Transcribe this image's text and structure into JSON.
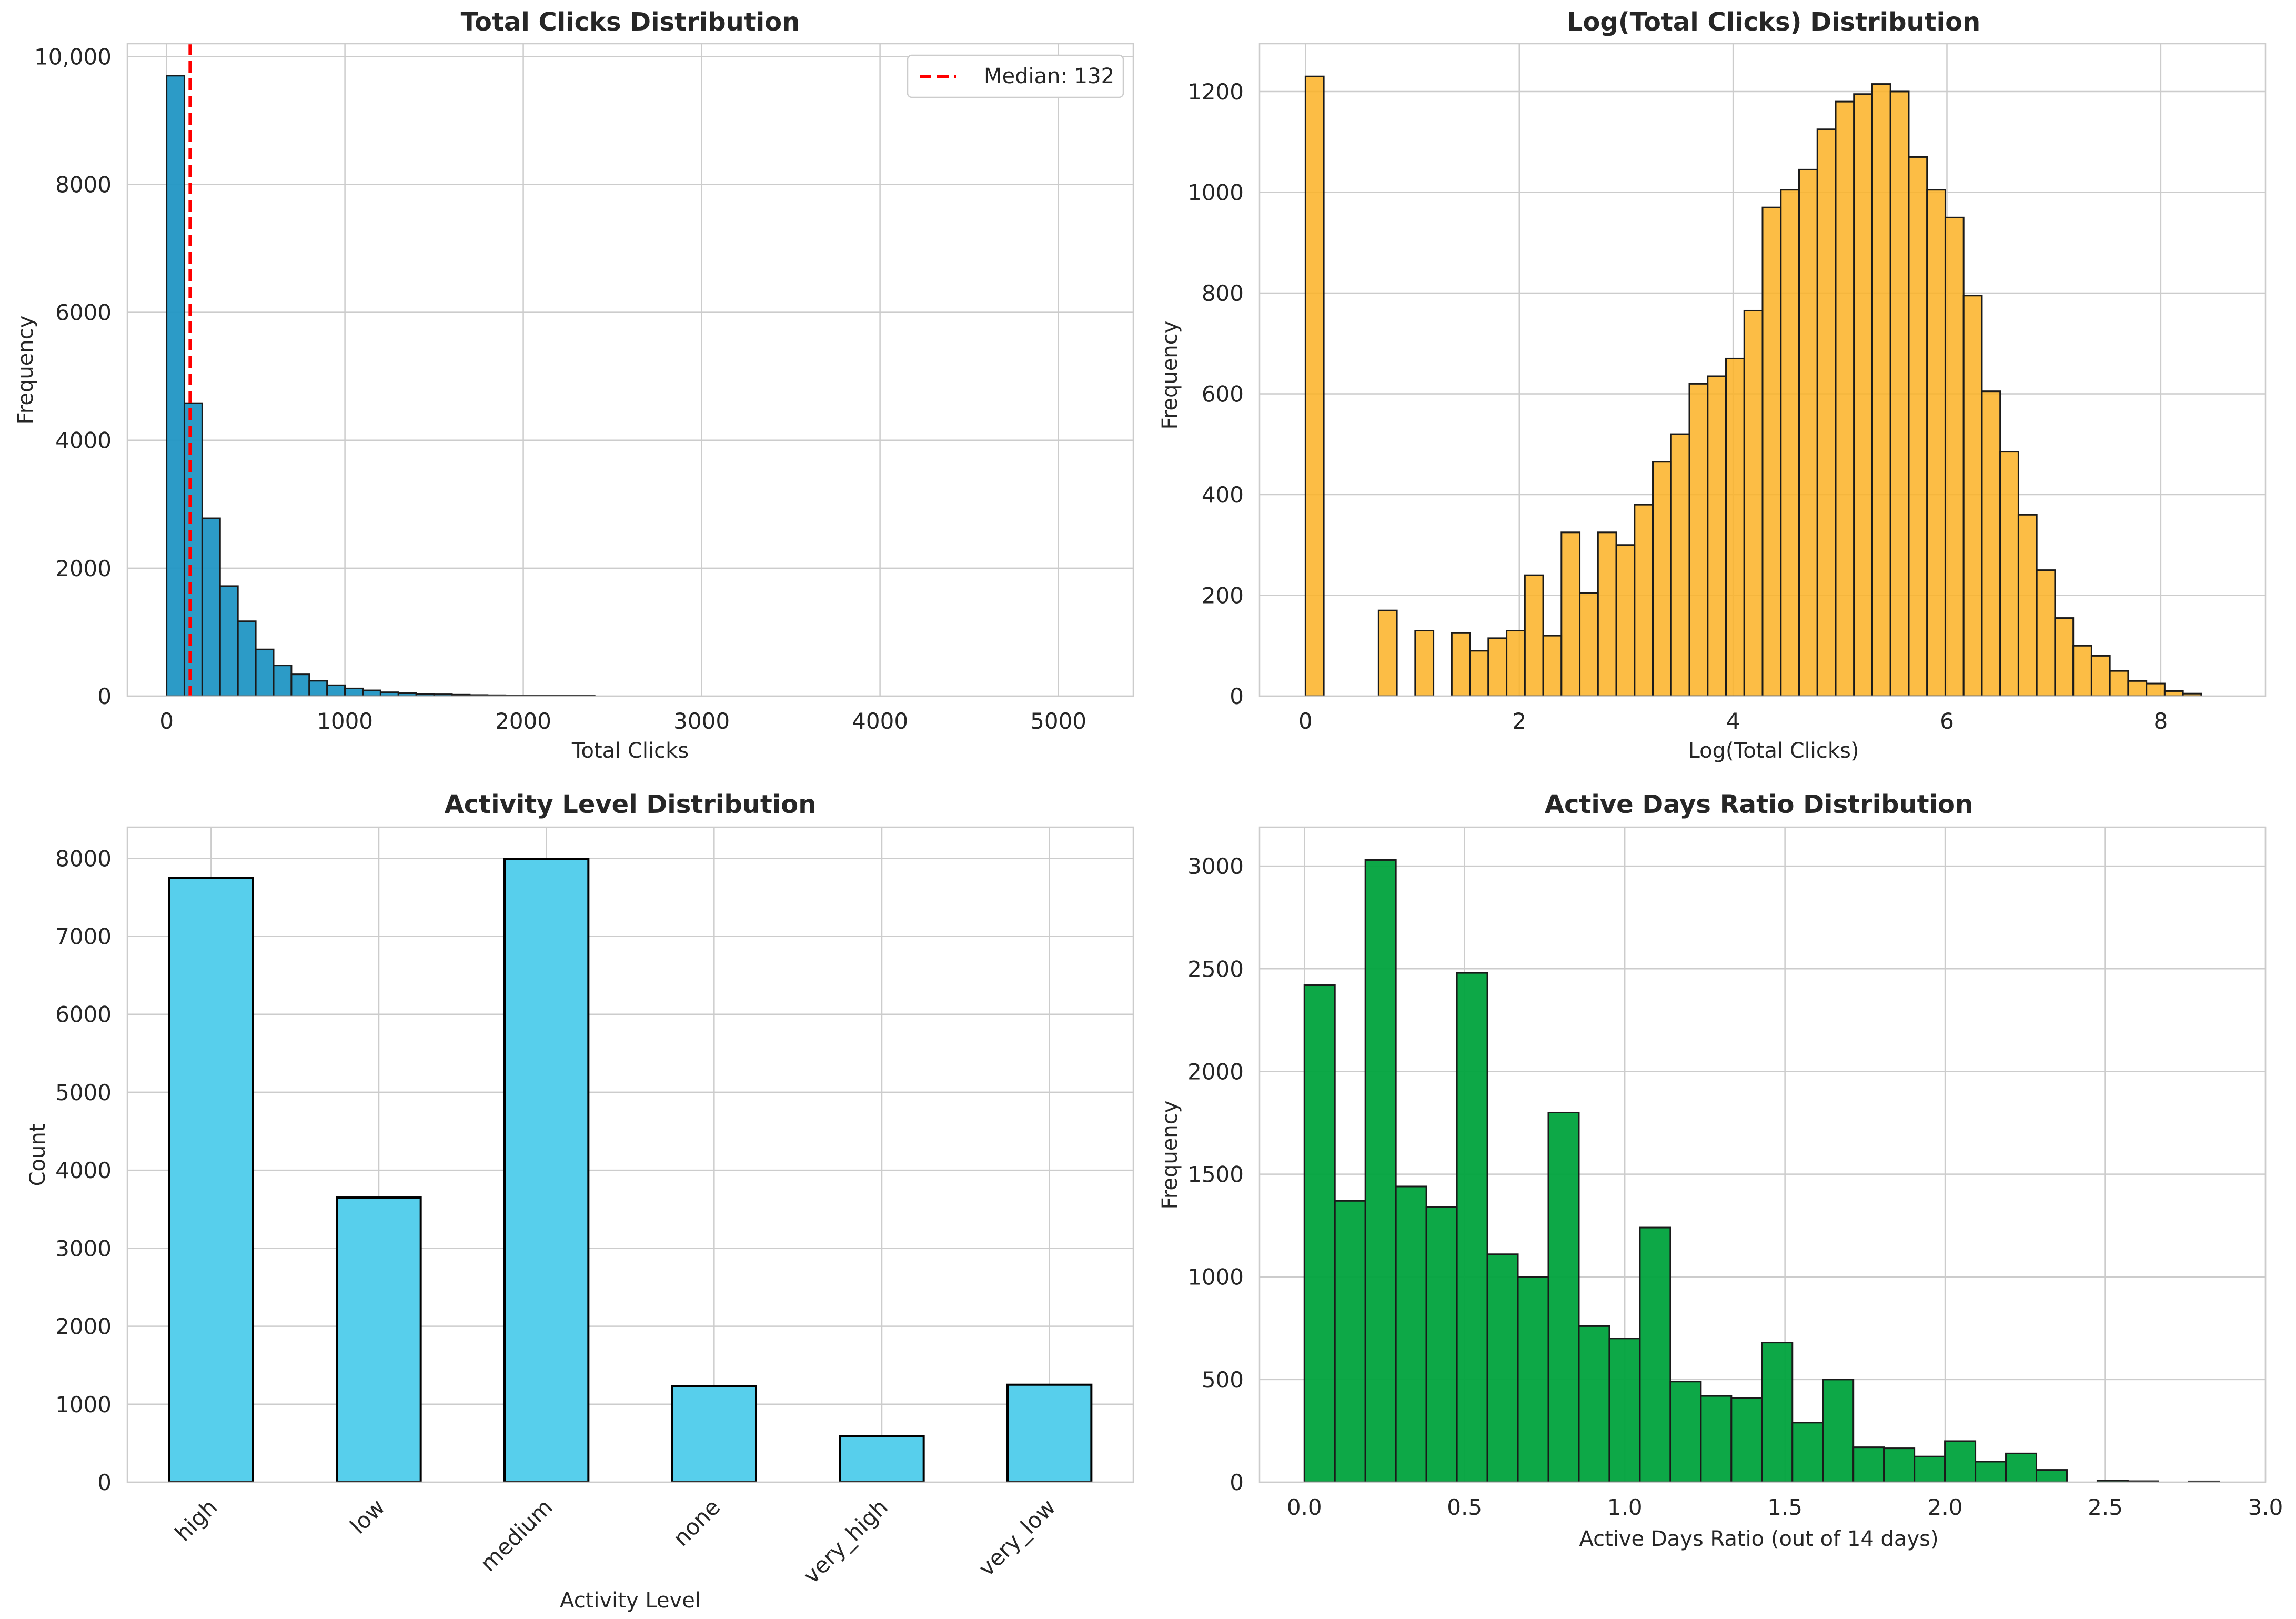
{
  "chart_data": [
    {
      "type": "bar",
      "subtype": "histogram",
      "title": "Total Clicks Distribution",
      "xlabel": "Total Clicks",
      "ylabel": "Frequency",
      "xlim": [
        -220,
        5420
      ],
      "ylim": [
        0,
        10200
      ],
      "xticks": [
        0,
        1000,
        2000,
        3000,
        4000,
        5000
      ],
      "xtick_labels": [
        "0",
        "1000",
        "2000",
        "3000",
        "4000",
        "5000"
      ],
      "yticks": [
        0,
        2000,
        4000,
        6000,
        8000,
        10000
      ],
      "ytick_labels": [
        "0",
        "2000",
        "4000",
        "6000",
        "8000",
        "10,000"
      ],
      "bin_start": 0,
      "bin_width": 100,
      "values": [
        9700,
        4580,
        2780,
        1720,
        1170,
        730,
        480,
        340,
        240,
        170,
        120,
        90,
        60,
        45,
        35,
        28,
        22,
        17,
        14,
        11,
        9,
        7,
        6,
        5
      ],
      "color": "#2196c4",
      "reference_line": {
        "x": 132,
        "color": "#ff0000",
        "label": "Median: 132"
      },
      "legend_position": "top-right",
      "grid": true
    },
    {
      "type": "bar",
      "subtype": "histogram",
      "title": "Log(Total Clicks) Distribution",
      "xlabel": "Log(Total Clicks)",
      "ylabel": "Frequency",
      "xlim": [
        -0.43,
        8.98
      ],
      "ylim": [
        0,
        1295
      ],
      "xticks": [
        0,
        2,
        4,
        6,
        8
      ],
      "xtick_labels": [
        "0",
        "2",
        "4",
        "6",
        "8"
      ],
      "yticks": [
        0,
        200,
        400,
        600,
        800,
        1000,
        1200
      ],
      "ytick_labels": [
        "0",
        "200",
        "400",
        "600",
        "800",
        "1000",
        "1200"
      ],
      "bin_start": 0,
      "bin_width": 0.171,
      "values": [
        1230,
        0,
        0,
        0,
        170,
        0,
        130,
        0,
        125,
        90,
        115,
        130,
        240,
        120,
        325,
        205,
        325,
        300,
        380,
        465,
        520,
        620,
        635,
        670,
        765,
        970,
        1005,
        1045,
        1125,
        1180,
        1195,
        1215,
        1200,
        1070,
        1005,
        950,
        795,
        605,
        485,
        360,
        250,
        155,
        100,
        80,
        50,
        30,
        25,
        10,
        5
      ],
      "color": "#fbb225",
      "grid": true
    },
    {
      "type": "bar",
      "title": "Activity Level Distribution",
      "xlabel": "Activity Level",
      "ylabel": "Count",
      "categories": [
        "high",
        "low",
        "medium",
        "none",
        "very_high",
        "very_low"
      ],
      "values": [
        7750,
        3650,
        7990,
        1230,
        590,
        1250
      ],
      "ylim": [
        0,
        8400
      ],
      "yticks": [
        0,
        1000,
        2000,
        3000,
        4000,
        5000,
        6000,
        7000,
        8000
      ],
      "ytick_labels": [
        "0",
        "1000",
        "2000",
        "3000",
        "4000",
        "5000",
        "6000",
        "7000",
        "8000"
      ],
      "color": "#57cfec",
      "grid": true
    },
    {
      "type": "bar",
      "subtype": "histogram",
      "title": "Active Days Ratio Distribution",
      "xlabel": "Active Days Ratio (out of 14 days)",
      "ylabel": "Frequency",
      "xlim": [
        -0.14,
        3.0
      ],
      "ylim": [
        0,
        3190
      ],
      "xticks": [
        0,
        0.5,
        1.0,
        1.5,
        2.0,
        2.5,
        3.0
      ],
      "xtick_labels": [
        "0.0",
        "0.5",
        "1.0",
        "1.5",
        "2.0",
        "2.5",
        "3.0"
      ],
      "yticks": [
        0,
        500,
        1000,
        1500,
        2000,
        2500,
        3000
      ],
      "ytick_labels": [
        "0",
        "500",
        "1000",
        "1500",
        "2000",
        "2500",
        "3000"
      ],
      "bin_start": 0,
      "bin_width": 0.0952,
      "values": [
        2420,
        1370,
        3030,
        1440,
        1340,
        2480,
        1110,
        1000,
        1800,
        760,
        700,
        1240,
        490,
        420,
        410,
        680,
        290,
        500,
        170,
        165,
        125,
        200,
        100,
        140,
        60,
        0,
        8,
        5,
        0,
        4
      ],
      "color": "#00a33d",
      "grid": true
    }
  ]
}
